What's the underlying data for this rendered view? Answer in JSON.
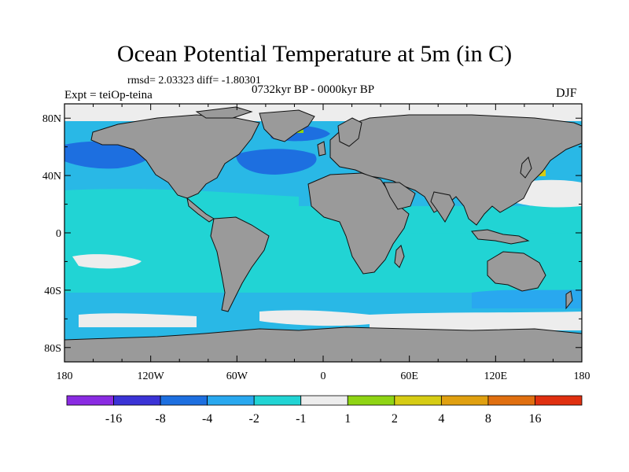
{
  "chart_data": {
    "type": "heatmap",
    "title": "Ocean Potential Temperature at 5m (in C)",
    "stats_text": "rmsd= 2.03323 diff= -1.80301",
    "experiment": "Expt = teiOp-teina",
    "period": "0732kyr BP - 0000kyr BP",
    "season": "DJF",
    "x_ticks": [
      "180",
      "120W",
      "60W",
      "0",
      "60E",
      "120E",
      "180"
    ],
    "y_ticks": [
      "80N",
      "40N",
      "0",
      "40S",
      "80S"
    ],
    "xlim": [
      -180,
      180
    ],
    "ylim": [
      -90,
      90
    ],
    "colorbar": {
      "labels": [
        "-16",
        "-8",
        "-4",
        "-2",
        "-1",
        "1",
        "2",
        "4",
        "8",
        "16"
      ],
      "colors": [
        "#8a2be2",
        "#3b33d6",
        "#1d6fe0",
        "#29a8ef",
        "#21d4d4",
        "#ededed",
        "#8fd414",
        "#d6cc14",
        "#e0a010",
        "#e06f10",
        "#e03010"
      ]
    },
    "colors": {
      "land": "#9a9a9a",
      "ocean_base": "#29b8e6",
      "ocean_cyan": "#21d4d4",
      "ocean_dark": "#1d6fe0",
      "near_zero": "#ededed",
      "warm_small": "#8fd414",
      "warm_mid": "#d6cc14"
    }
  }
}
